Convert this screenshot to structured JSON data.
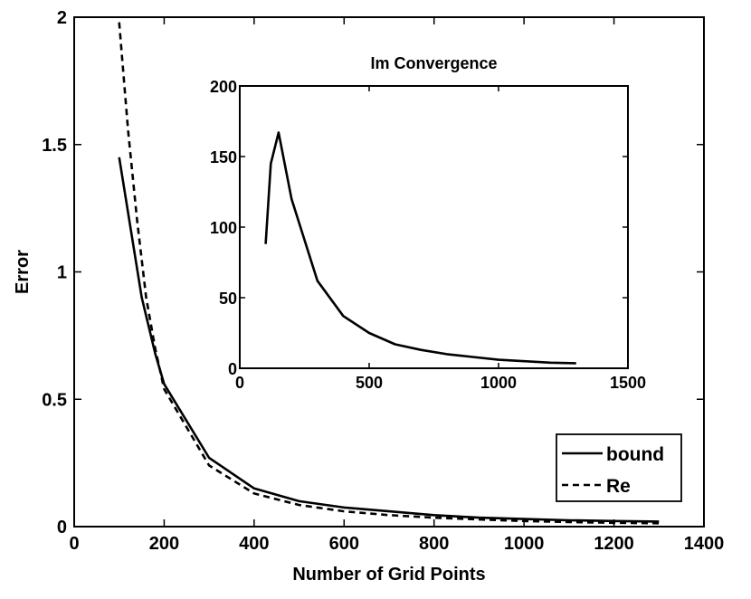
{
  "chart_data": [
    {
      "type": "line",
      "title": "",
      "xlabel": "Number of Grid Points",
      "ylabel": "Error",
      "xlim": [
        0,
        1400
      ],
      "ylim": [
        0,
        2
      ],
      "xticks": [
        0,
        200,
        400,
        600,
        800,
        1000,
        1200,
        1400
      ],
      "yticks": [
        0,
        0.5,
        1,
        1.5,
        2
      ],
      "xtick_labels": [
        "0",
        "200",
        "400",
        "600",
        "800",
        "1000",
        "1200",
        "1400"
      ],
      "ytick_labels": [
        "0",
        "0.5",
        "1",
        "1.5",
        "2"
      ],
      "grid": false,
      "legend_position": "bottom-right",
      "series": [
        {
          "name": "bound",
          "style": "solid",
          "color": "#000000",
          "x": [
            100,
            150,
            180,
            200,
            300,
            400,
            500,
            600,
            700,
            800,
            900,
            1000,
            1100,
            1200,
            1300
          ],
          "y": [
            1.45,
            0.9,
            0.68,
            0.56,
            0.27,
            0.15,
            0.1,
            0.075,
            0.06,
            0.045,
            0.035,
            0.03,
            0.025,
            0.022,
            0.02
          ]
        },
        {
          "name": "Re",
          "style": "dashed",
          "color": "#000000",
          "x": [
            100,
            120,
            140,
            160,
            180,
            200,
            300,
            400,
            500,
            600,
            700,
            800,
            900,
            1000,
            1100,
            1200,
            1300
          ],
          "y": [
            1.98,
            1.55,
            1.2,
            0.9,
            0.7,
            0.54,
            0.24,
            0.13,
            0.085,
            0.06,
            0.045,
            0.035,
            0.028,
            0.022,
            0.018,
            0.015,
            0.013
          ]
        }
      ]
    },
    {
      "type": "line",
      "title": "Im Convergence",
      "xlabel": "",
      "ylabel": "",
      "xlim": [
        0,
        1500
      ],
      "ylim": [
        0,
        200
      ],
      "xticks": [
        0,
        500,
        1000,
        1500
      ],
      "yticks": [
        0,
        50,
        100,
        150,
        200
      ],
      "xtick_labels": [
        "0",
        "500",
        "1000",
        "1500"
      ],
      "ytick_labels": [
        "0",
        "50",
        "100",
        "150",
        "200"
      ],
      "grid": false,
      "series": [
        {
          "style": "solid",
          "color": "#000000",
          "x": [
            100,
            120,
            150,
            200,
            300,
            400,
            500,
            600,
            700,
            800,
            900,
            1000,
            1100,
            1200,
            1300
          ],
          "y": [
            88,
            145,
            167,
            120,
            62,
            37,
            25,
            17,
            13,
            10,
            8,
            6,
            5,
            4,
            3.5
          ]
        }
      ]
    }
  ]
}
